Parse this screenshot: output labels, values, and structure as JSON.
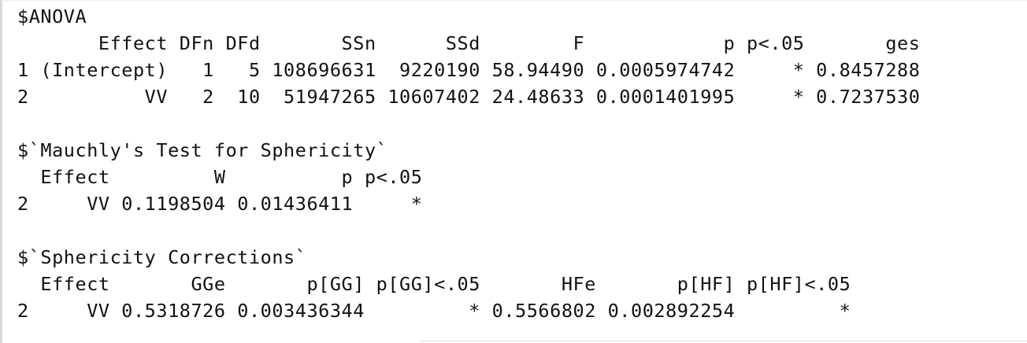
{
  "console_output": {
    "lines": [
      "$ANOVA",
      "       Effect DFn DFd       SSn      SSd        F            p p<.05       ges",
      "1 (Intercept)   1   5 108696631  9220190 58.94490 0.0005974742     * 0.8457288",
      "2          VV   2  10  51947265 10607402 24.48633 0.0001401995     * 0.7237530",
      "",
      "$`Mauchly's Test for Sphericity`",
      "  Effect         W          p p<.05",
      "2     VV 0.1198504 0.01436411     *",
      "",
      "$`Sphericity Corrections`",
      "  Effect       GGe       p[GG] p[GG]<.05       HFe       p[HF] p[HF]<.05",
      "2     VV 0.5318726 0.003436344         * 0.5566802 0.002892254         *"
    ]
  }
}
